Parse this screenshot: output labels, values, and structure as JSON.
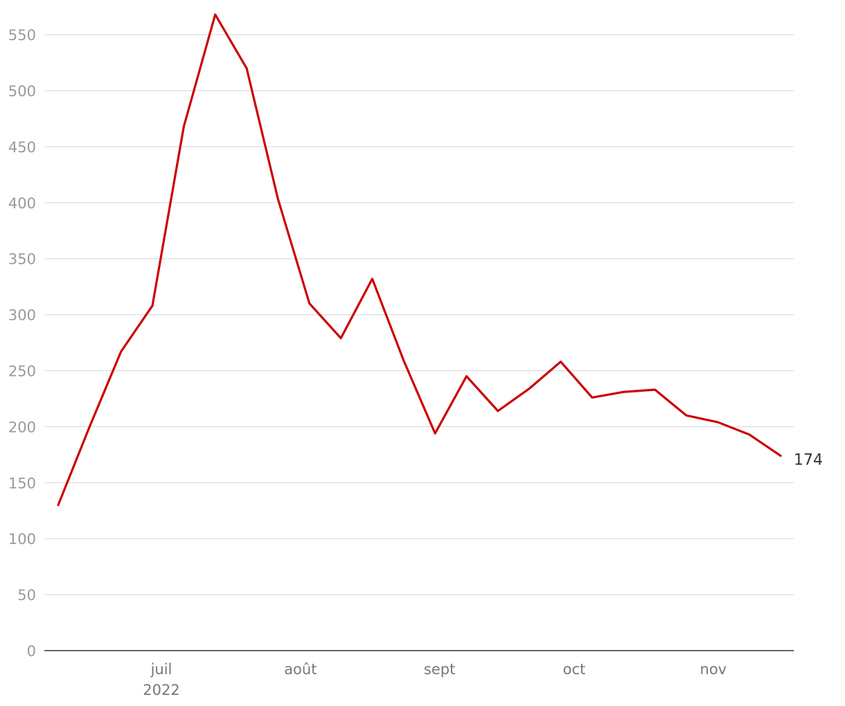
{
  "chart_data": {
    "type": "line",
    "title": "",
    "xlabel": "",
    "ylabel": "",
    "ylim": [
      0,
      568
    ],
    "y_ticks": [
      0,
      50,
      100,
      150,
      200,
      250,
      300,
      350,
      400,
      450,
      500,
      550
    ],
    "x_ticks": [
      {
        "date": "2022-07-01",
        "label": "juil",
        "sublabel": "2022"
      },
      {
        "date": "2022-08-01",
        "label": "août",
        "sublabel": ""
      },
      {
        "date": "2022-09-01",
        "label": "sept",
        "sublabel": ""
      },
      {
        "date": "2022-10-01",
        "label": "oct",
        "sublabel": ""
      },
      {
        "date": "2022-11-01",
        "label": "nov",
        "sublabel": ""
      }
    ],
    "grid": true,
    "legend": "none",
    "series": [
      {
        "color": "#cc0000",
        "points": [
          {
            "x": "2022-06-08",
            "y": 130
          },
          {
            "x": "2022-06-15",
            "y": 200
          },
          {
            "x": "2022-06-22",
            "y": 267
          },
          {
            "x": "2022-06-29",
            "y": 308
          },
          {
            "x": "2022-07-06",
            "y": 468
          },
          {
            "x": "2022-07-13",
            "y": 568
          },
          {
            "x": "2022-07-20",
            "y": 520
          },
          {
            "x": "2022-07-27",
            "y": 403
          },
          {
            "x": "2022-08-03",
            "y": 310
          },
          {
            "x": "2022-08-10",
            "y": 279
          },
          {
            "x": "2022-08-17",
            "y": 332
          },
          {
            "x": "2022-08-24",
            "y": 259
          },
          {
            "x": "2022-08-31",
            "y": 194
          },
          {
            "x": "2022-09-07",
            "y": 245
          },
          {
            "x": "2022-09-14",
            "y": 214
          },
          {
            "x": "2022-09-21",
            "y": 234
          },
          {
            "x": "2022-09-28",
            "y": 258
          },
          {
            "x": "2022-10-05",
            "y": 226
          },
          {
            "x": "2022-10-12",
            "y": 231
          },
          {
            "x": "2022-10-19",
            "y": 233
          },
          {
            "x": "2022-10-26",
            "y": 210
          },
          {
            "x": "2022-11-02",
            "y": 204
          },
          {
            "x": "2022-11-09",
            "y": 193
          },
          {
            "x": "2022-11-16",
            "y": 174
          }
        ],
        "end_label": "174"
      }
    ]
  }
}
